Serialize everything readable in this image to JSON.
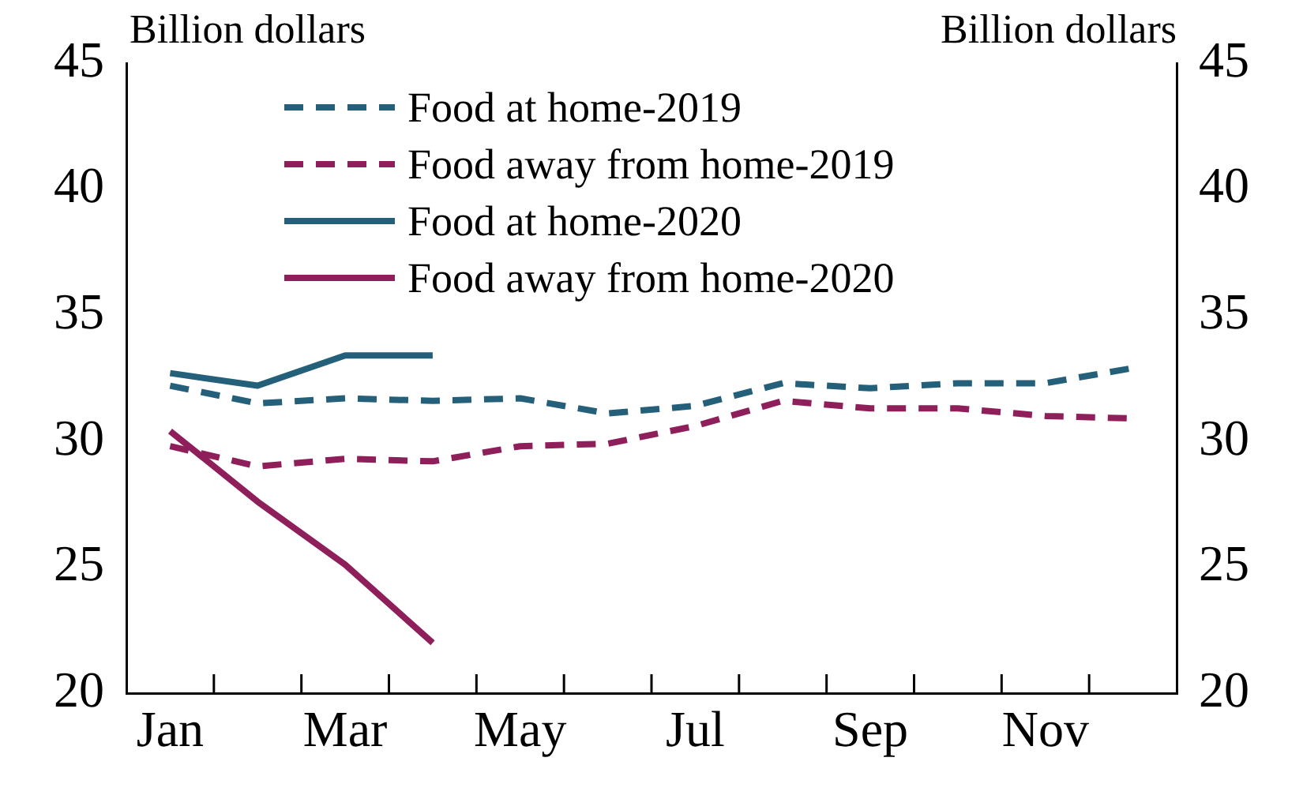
{
  "chart_data": {
    "type": "line",
    "ylabel": "Billion dollars",
    "y2label": "Billion dollars",
    "categories": [
      "Jan",
      null,
      "Mar",
      null,
      "May",
      null,
      "Jul",
      null,
      "Sep",
      null,
      "Nov",
      null
    ],
    "series": [
      {
        "name": "Food at home-2019",
        "color": "#24607a",
        "line_style": "dashed",
        "values": [
          32.2,
          31.5,
          31.7,
          31.6,
          31.7,
          31.1,
          31.4,
          32.3,
          32.1,
          32.3,
          32.3,
          32.9
        ]
      },
      {
        "name": "Food away from home-2019",
        "color": "#8e1f5a",
        "line_style": "dashed",
        "values": [
          29.8,
          29.0,
          29.3,
          29.2,
          29.8,
          29.9,
          30.6,
          31.6,
          31.3,
          31.3,
          31.0,
          30.9
        ]
      },
      {
        "name": "Food at home-2020",
        "color": "#24607a",
        "line_style": "solid",
        "values": [
          32.7,
          32.2,
          33.4,
          33.4,
          null,
          null,
          null,
          null,
          null,
          null,
          null,
          null
        ]
      },
      {
        "name": "Food away from home-2020",
        "color": "#8e1f5a",
        "line_style": "solid",
        "values": [
          30.4,
          27.6,
          25.1,
          22.0,
          null,
          null,
          null,
          null,
          null,
          null,
          null,
          null
        ]
      }
    ],
    "ylim": [
      20,
      45
    ],
    "yticks": [
      20,
      25,
      30,
      35,
      40,
      45
    ],
    "y2lim": [
      20,
      45
    ],
    "y2ticks": [
      20,
      25,
      30,
      35,
      40,
      45
    ],
    "grid": false,
    "legend": "top left",
    "marker": "none"
  }
}
